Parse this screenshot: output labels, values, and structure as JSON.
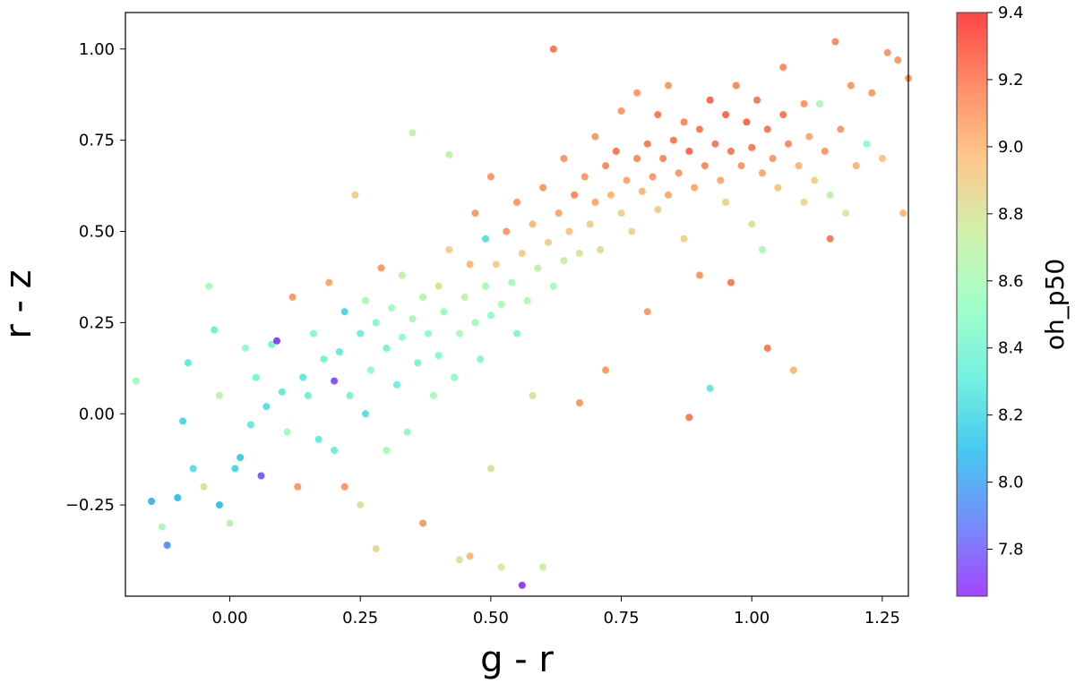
{
  "chart_data": {
    "type": "scatter",
    "xlabel": "g - r",
    "ylabel": "r - z",
    "xlim": [
      -0.2,
      1.3
    ],
    "ylim": [
      -0.5,
      1.1
    ],
    "xticks": [
      0.0,
      0.25,
      0.5,
      0.75,
      1.0,
      1.25
    ],
    "xtick_labels": [
      "0.00",
      "0.25",
      "0.50",
      "0.75",
      "1.00",
      "1.25"
    ],
    "yticks": [
      -0.25,
      0.0,
      0.25,
      0.5,
      0.75,
      1.0
    ],
    "ytick_labels": [
      "−0.25",
      "0.00",
      "0.25",
      "0.50",
      "0.75",
      "1.00"
    ],
    "grid": false,
    "colorbar": {
      "label": "oh_p50",
      "range": [
        7.66,
        9.4
      ],
      "ticks": [
        7.8,
        8.0,
        8.2,
        8.4,
        8.6,
        8.8,
        9.0,
        9.2,
        9.4
      ],
      "tick_labels": [
        "7.8",
        "8.0",
        "8.2",
        "8.4",
        "8.6",
        "8.8",
        "9.0",
        "9.2",
        "9.4"
      ],
      "colormap": "rainbow",
      "placement": "right"
    },
    "points": [
      [
        -0.18,
        0.09,
        8.55
      ],
      [
        -0.15,
        -0.24,
        8.05
      ],
      [
        -0.13,
        -0.31,
        8.6
      ],
      [
        -0.12,
        -0.36,
        7.95
      ],
      [
        -0.1,
        -0.23,
        8.1
      ],
      [
        -0.09,
        -0.02,
        8.2
      ],
      [
        -0.08,
        0.14,
        8.3
      ],
      [
        -0.07,
        -0.15,
        8.25
      ],
      [
        -0.05,
        -0.2,
        8.8
      ],
      [
        -0.04,
        0.35,
        8.6
      ],
      [
        -0.03,
        0.23,
        8.35
      ],
      [
        -0.02,
        -0.25,
        8.1
      ],
      [
        -0.02,
        0.05,
        8.7
      ],
      [
        0.0,
        -0.3,
        8.7
      ],
      [
        0.01,
        -0.15,
        8.2
      ],
      [
        0.02,
        -0.12,
        8.15
      ],
      [
        0.03,
        0.18,
        8.5
      ],
      [
        0.04,
        -0.03,
        8.3
      ],
      [
        0.05,
        0.1,
        8.4
      ],
      [
        0.06,
        -0.17,
        7.8
      ],
      [
        0.07,
        0.02,
        8.25
      ],
      [
        0.08,
        0.19,
        8.4
      ],
      [
        0.09,
        0.2,
        7.7
      ],
      [
        0.1,
        0.06,
        8.3
      ],
      [
        0.11,
        -0.05,
        8.55
      ],
      [
        0.12,
        0.32,
        9.1
      ],
      [
        0.13,
        -0.2,
        9.1
      ],
      [
        0.14,
        0.1,
        8.3
      ],
      [
        0.15,
        0.05,
        8.35
      ],
      [
        0.16,
        0.22,
        8.45
      ],
      [
        0.17,
        -0.07,
        8.3
      ],
      [
        0.18,
        0.15,
        8.4
      ],
      [
        0.19,
        0.36,
        9.05
      ],
      [
        0.2,
        -0.1,
        8.35
      ],
      [
        0.2,
        0.09,
        7.75
      ],
      [
        0.21,
        0.17,
        8.3
      ],
      [
        0.22,
        -0.2,
        9.1
      ],
      [
        0.22,
        0.28,
        8.2
      ],
      [
        0.23,
        0.05,
        8.4
      ],
      [
        0.24,
        0.6,
        8.9
      ],
      [
        0.25,
        0.22,
        8.35
      ],
      [
        0.25,
        -0.25,
        8.8
      ],
      [
        0.26,
        0.31,
        8.6
      ],
      [
        0.26,
        0.0,
        8.25
      ],
      [
        0.27,
        0.12,
        8.5
      ],
      [
        0.28,
        0.25,
        8.45
      ],
      [
        0.28,
        -0.37,
        8.85
      ],
      [
        0.29,
        0.4,
        9.1
      ],
      [
        0.3,
        0.18,
        8.4
      ],
      [
        0.3,
        -0.1,
        8.6
      ],
      [
        0.31,
        0.29,
        8.55
      ],
      [
        0.32,
        0.08,
        8.35
      ],
      [
        0.33,
        0.21,
        8.5
      ],
      [
        0.33,
        0.38,
        8.7
      ],
      [
        0.34,
        -0.05,
        8.5
      ],
      [
        0.35,
        0.26,
        8.6
      ],
      [
        0.35,
        0.77,
        8.7
      ],
      [
        0.36,
        0.14,
        8.4
      ],
      [
        0.37,
        -0.3,
        9.1
      ],
      [
        0.37,
        0.32,
        8.65
      ],
      [
        0.38,
        0.22,
        8.5
      ],
      [
        0.39,
        0.05,
        8.6
      ],
      [
        0.4,
        0.35,
        8.8
      ],
      [
        0.4,
        0.16,
        8.45
      ],
      [
        0.41,
        0.28,
        8.55
      ],
      [
        0.42,
        0.45,
        8.9
      ],
      [
        0.42,
        0.71,
        8.7
      ],
      [
        0.43,
        0.1,
        8.5
      ],
      [
        0.44,
        0.22,
        8.6
      ],
      [
        0.44,
        -0.4,
        8.8
      ],
      [
        0.45,
        0.32,
        8.7
      ],
      [
        0.46,
        0.41,
        9.0
      ],
      [
        0.46,
        -0.39,
        9.0
      ],
      [
        0.47,
        0.25,
        8.55
      ],
      [
        0.47,
        0.55,
        9.1
      ],
      [
        0.48,
        0.15,
        8.45
      ],
      [
        0.49,
        0.35,
        8.6
      ],
      [
        0.49,
        0.48,
        8.25
      ],
      [
        0.5,
        0.27,
        8.5
      ],
      [
        0.5,
        0.65,
        9.1
      ],
      [
        0.5,
        -0.15,
        8.8
      ],
      [
        0.51,
        0.41,
        8.9
      ],
      [
        0.52,
        0.3,
        8.6
      ],
      [
        0.52,
        -0.42,
        8.75
      ],
      [
        0.53,
        0.5,
        9.1
      ],
      [
        0.54,
        0.36,
        8.55
      ],
      [
        0.55,
        0.22,
        8.45
      ],
      [
        0.55,
        0.58,
        9.1
      ],
      [
        0.56,
        0.44,
        8.9
      ],
      [
        0.56,
        -0.47,
        7.7
      ],
      [
        0.57,
        0.31,
        8.6
      ],
      [
        0.58,
        0.52,
        9.0
      ],
      [
        0.58,
        0.05,
        8.8
      ],
      [
        0.59,
        0.4,
        8.7
      ],
      [
        0.6,
        0.62,
        9.1
      ],
      [
        0.6,
        -0.42,
        8.75
      ],
      [
        0.61,
        0.47,
        8.9
      ],
      [
        0.62,
        0.35,
        8.6
      ],
      [
        0.62,
        1.0,
        9.2
      ],
      [
        0.63,
        0.55,
        9.05
      ],
      [
        0.64,
        0.42,
        8.75
      ],
      [
        0.64,
        0.7,
        9.1
      ],
      [
        0.65,
        0.5,
        8.95
      ],
      [
        0.66,
        0.6,
        9.15
      ],
      [
        0.67,
        0.44,
        8.8
      ],
      [
        0.67,
        0.03,
        9.1
      ],
      [
        0.68,
        0.65,
        9.1
      ],
      [
        0.69,
        0.52,
        8.9
      ],
      [
        0.7,
        0.58,
        9.05
      ],
      [
        0.7,
        0.76,
        9.1
      ],
      [
        0.71,
        0.45,
        8.85
      ],
      [
        0.72,
        0.68,
        9.15
      ],
      [
        0.72,
        0.12,
        9.1
      ],
      [
        0.73,
        0.6,
        9.0
      ],
      [
        0.74,
        0.72,
        9.2
      ],
      [
        0.75,
        0.55,
        8.9
      ],
      [
        0.75,
        0.83,
        9.1
      ],
      [
        0.76,
        0.64,
        9.05
      ],
      [
        0.77,
        0.5,
        8.85
      ],
      [
        0.78,
        0.7,
        9.15
      ],
      [
        0.78,
        0.88,
        9.1
      ],
      [
        0.79,
        0.61,
        9.0
      ],
      [
        0.8,
        0.74,
        9.2
      ],
      [
        0.8,
        0.28,
        9.1
      ],
      [
        0.81,
        0.65,
        9.1
      ],
      [
        0.82,
        0.56,
        8.9
      ],
      [
        0.82,
        0.82,
        9.2
      ],
      [
        0.83,
        0.7,
        9.15
      ],
      [
        0.84,
        0.6,
        9.05
      ],
      [
        0.84,
        0.9,
        9.1
      ],
      [
        0.85,
        0.75,
        9.2
      ],
      [
        0.86,
        0.66,
        9.1
      ],
      [
        0.87,
        0.8,
        9.15
      ],
      [
        0.87,
        0.48,
        8.9
      ],
      [
        0.88,
        0.72,
        9.25
      ],
      [
        0.88,
        -0.01,
        9.2
      ],
      [
        0.89,
        0.62,
        9.05
      ],
      [
        0.9,
        0.78,
        9.2
      ],
      [
        0.9,
        0.38,
        9.1
      ],
      [
        0.91,
        0.68,
        9.15
      ],
      [
        0.92,
        0.86,
        9.25
      ],
      [
        0.92,
        0.07,
        8.3
      ],
      [
        0.93,
        0.74,
        9.2
      ],
      [
        0.94,
        0.64,
        9.05
      ],
      [
        0.95,
        0.82,
        9.25
      ],
      [
        0.95,
        0.58,
        8.9
      ],
      [
        0.96,
        0.72,
        9.2
      ],
      [
        0.96,
        0.36,
        9.2
      ],
      [
        0.97,
        0.9,
        9.15
      ],
      [
        0.98,
        0.68,
        9.1
      ],
      [
        0.99,
        0.8,
        9.25
      ],
      [
        1.0,
        0.73,
        9.2
      ],
      [
        1.0,
        0.52,
        8.8
      ],
      [
        1.01,
        0.86,
        9.2
      ],
      [
        1.02,
        0.66,
        9.05
      ],
      [
        1.02,
        0.45,
        8.6
      ],
      [
        1.03,
        0.18,
        9.2
      ],
      [
        1.03,
        0.78,
        9.2
      ],
      [
        1.04,
        0.7,
        9.1
      ],
      [
        1.05,
        0.62,
        8.95
      ],
      [
        1.06,
        0.95,
        9.15
      ],
      [
        1.06,
        0.82,
        9.2
      ],
      [
        1.07,
        0.74,
        9.15
      ],
      [
        1.08,
        0.12,
        9.0
      ],
      [
        1.09,
        0.68,
        9.0
      ],
      [
        1.1,
        0.85,
        9.1
      ],
      [
        1.1,
        0.58,
        8.85
      ],
      [
        1.11,
        0.76,
        9.05
      ],
      [
        1.12,
        0.64,
        8.9
      ],
      [
        1.13,
        0.85,
        8.6
      ],
      [
        1.14,
        0.72,
        9.1
      ],
      [
        1.15,
        0.6,
        8.7
      ],
      [
        1.15,
        0.48,
        9.2
      ],
      [
        1.16,
        1.02,
        9.15
      ],
      [
        1.17,
        0.78,
        9.1
      ],
      [
        1.18,
        0.55,
        8.75
      ],
      [
        1.19,
        0.9,
        9.1
      ],
      [
        1.2,
        0.68,
        9.0
      ],
      [
        1.22,
        0.74,
        8.5
      ],
      [
        1.23,
        0.88,
        9.1
      ],
      [
        1.25,
        0.7,
        8.95
      ],
      [
        1.26,
        0.99,
        9.1
      ],
      [
        1.28,
        0.97,
        9.1
      ],
      [
        1.29,
        0.55,
        9.0
      ],
      [
        1.3,
        0.92,
        9.1
      ]
    ]
  }
}
